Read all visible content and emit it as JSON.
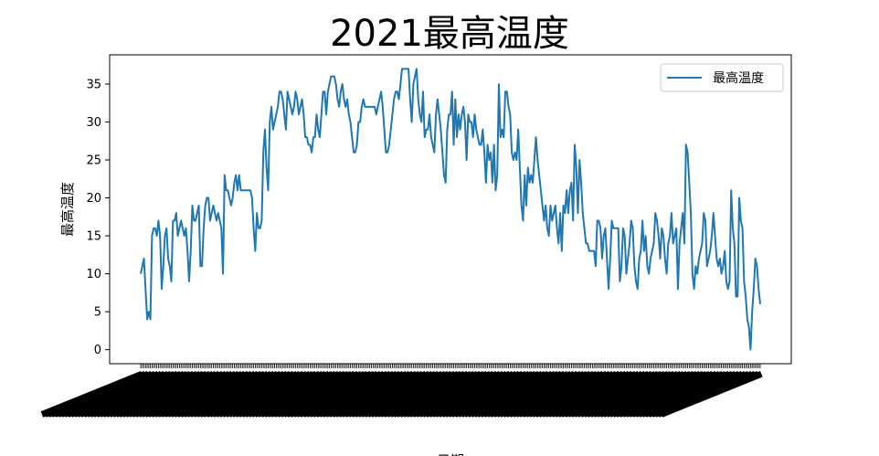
{
  "chart_data": {
    "type": "line",
    "title": "2021最高温度",
    "xlabel": "日期",
    "ylabel": "最高温度",
    "ylim": [
      -1.85,
      38.85
    ],
    "yticks": [
      0,
      5,
      10,
      15,
      20,
      25,
      30,
      35
    ],
    "grid": false,
    "legend": "top-right",
    "series": [
      {
        "name": "最高温度",
        "color": "#1f77b4",
        "values": [
          10,
          11,
          12,
          8,
          4,
          5,
          4,
          15,
          16,
          16,
          15,
          17,
          15,
          8,
          11,
          15,
          16,
          12,
          11,
          9,
          17,
          17,
          18,
          15,
          16,
          17,
          16,
          15,
          16,
          13,
          9,
          13,
          19,
          17,
          17,
          18,
          19,
          11,
          11,
          16,
          19,
          20,
          20,
          17,
          18,
          19,
          18,
          17,
          18,
          17,
          16,
          10,
          23,
          21,
          21,
          20,
          19,
          20,
          22,
          23,
          21,
          23,
          21,
          21,
          21,
          21,
          21,
          21,
          21,
          20,
          16,
          13,
          18,
          16,
          16,
          17,
          26,
          29,
          24,
          21,
          30,
          32,
          29,
          30,
          31,
          32,
          34,
          34,
          33,
          31,
          29,
          34,
          33,
          32,
          31,
          32,
          34,
          33,
          31,
          32,
          33,
          31,
          28,
          28,
          27,
          27,
          26,
          28,
          28,
          31,
          29,
          28,
          31,
          34,
          34,
          31,
          34,
          35,
          36,
          36,
          36,
          35,
          33,
          32,
          34,
          35,
          33,
          32,
          33,
          31,
          30,
          28,
          26,
          26,
          27,
          30,
          30,
          32,
          33,
          32,
          32,
          32,
          32,
          32,
          32,
          32,
          31,
          32,
          33,
          34,
          32,
          29,
          26,
          26,
          27,
          29,
          31,
          33,
          34,
          34,
          33,
          35,
          37,
          37,
          37,
          37,
          37,
          33,
          30,
          35,
          36,
          37,
          33,
          31,
          30,
          34,
          28,
          29,
          29,
          31,
          28,
          27,
          26,
          31,
          33,
          31,
          29,
          26,
          23,
          22,
          29,
          31,
          31,
          34,
          27,
          33,
          28,
          31,
          29,
          31,
          32,
          30,
          25,
          31,
          30,
          30,
          28,
          31,
          29,
          28,
          27,
          27,
          29,
          26,
          22,
          27,
          25,
          26,
          22,
          27,
          21,
          23,
          35,
          28,
          29,
          28,
          34,
          34,
          32,
          31,
          26,
          25,
          26,
          25,
          29,
          24,
          19,
          17,
          23,
          19,
          24,
          22,
          23,
          22,
          25,
          28,
          25,
          23,
          21,
          19,
          17,
          19,
          16,
          15,
          19,
          17,
          18,
          19,
          16,
          14,
          18,
          13,
          19,
          18,
          21,
          18,
          21,
          22,
          17,
          27,
          24,
          18,
          25,
          22,
          18,
          16,
          14,
          14,
          13,
          13,
          13,
          13,
          11,
          17,
          17,
          16,
          12,
          15,
          16,
          12,
          8,
          12,
          17,
          16,
          16,
          16,
          16,
          9,
          11,
          16,
          15,
          10,
          12,
          14,
          17,
          16,
          11,
          9,
          8,
          12,
          13,
          17,
          13,
          15,
          11,
          10,
          12,
          13,
          14,
          18,
          17,
          15,
          12,
          16,
          15,
          12,
          10,
          14,
          15,
          18,
          14,
          15,
          16,
          8,
          14,
          16,
          18,
          14,
          27,
          26,
          22,
          18,
          10,
          8,
          11,
          10,
          12,
          13,
          14,
          18,
          17,
          11,
          12,
          13,
          15,
          18,
          15,
          12,
          11,
          12,
          10,
          11,
          13,
          9,
          8,
          9,
          21,
          16,
          14,
          7,
          7,
          20,
          17,
          16,
          9,
          7,
          4,
          3,
          0,
          5,
          8,
          12,
          11,
          8,
          6
        ]
      }
    ]
  }
}
